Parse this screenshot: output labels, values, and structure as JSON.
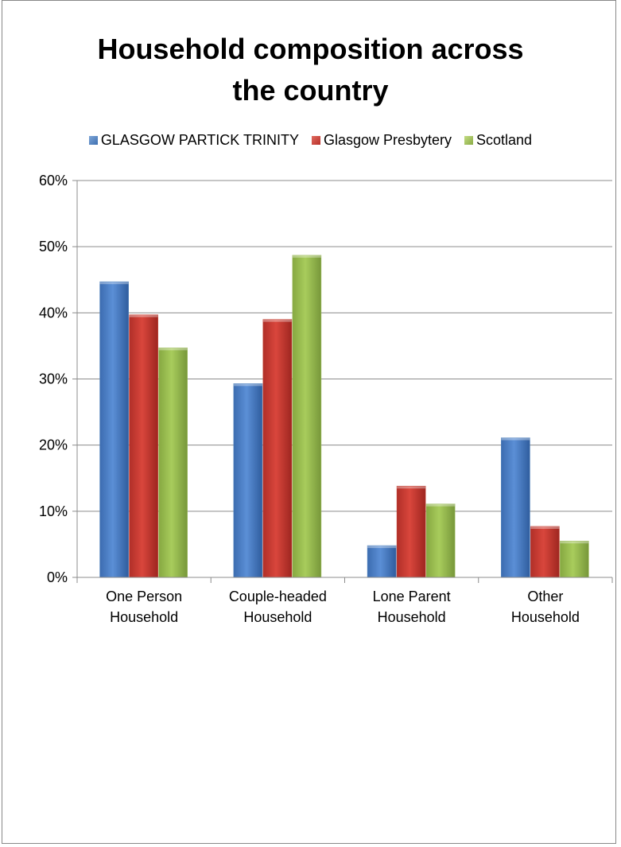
{
  "chart_data": {
    "type": "bar",
    "title": "Household composition across\nthe country",
    "categories": [
      "One Person\nHousehold",
      "Couple-headed\nHousehold",
      "Lone Parent\nHousehold",
      "Other\nHousehold"
    ],
    "series": [
      {
        "name": "GLASGOW PARTICK TRINITY",
        "color": "#4a7ebb",
        "values": [
          44.7,
          29.3,
          4.8,
          21.1
        ]
      },
      {
        "name": "Glasgow Presbytery",
        "color": "#c0392b",
        "values": [
          39.7,
          39.0,
          13.8,
          7.7
        ]
      },
      {
        "name": "Scotland",
        "color": "#9bbb59",
        "values": [
          34.7,
          48.7,
          11.1,
          5.5
        ]
      }
    ],
    "yticks": [
      "0%",
      "10%",
      "20%",
      "30%",
      "40%",
      "50%",
      "60%"
    ],
    "ylim": [
      0,
      60
    ],
    "xlabel": "",
    "ylabel": "",
    "grid": true,
    "legend_position": "top"
  }
}
